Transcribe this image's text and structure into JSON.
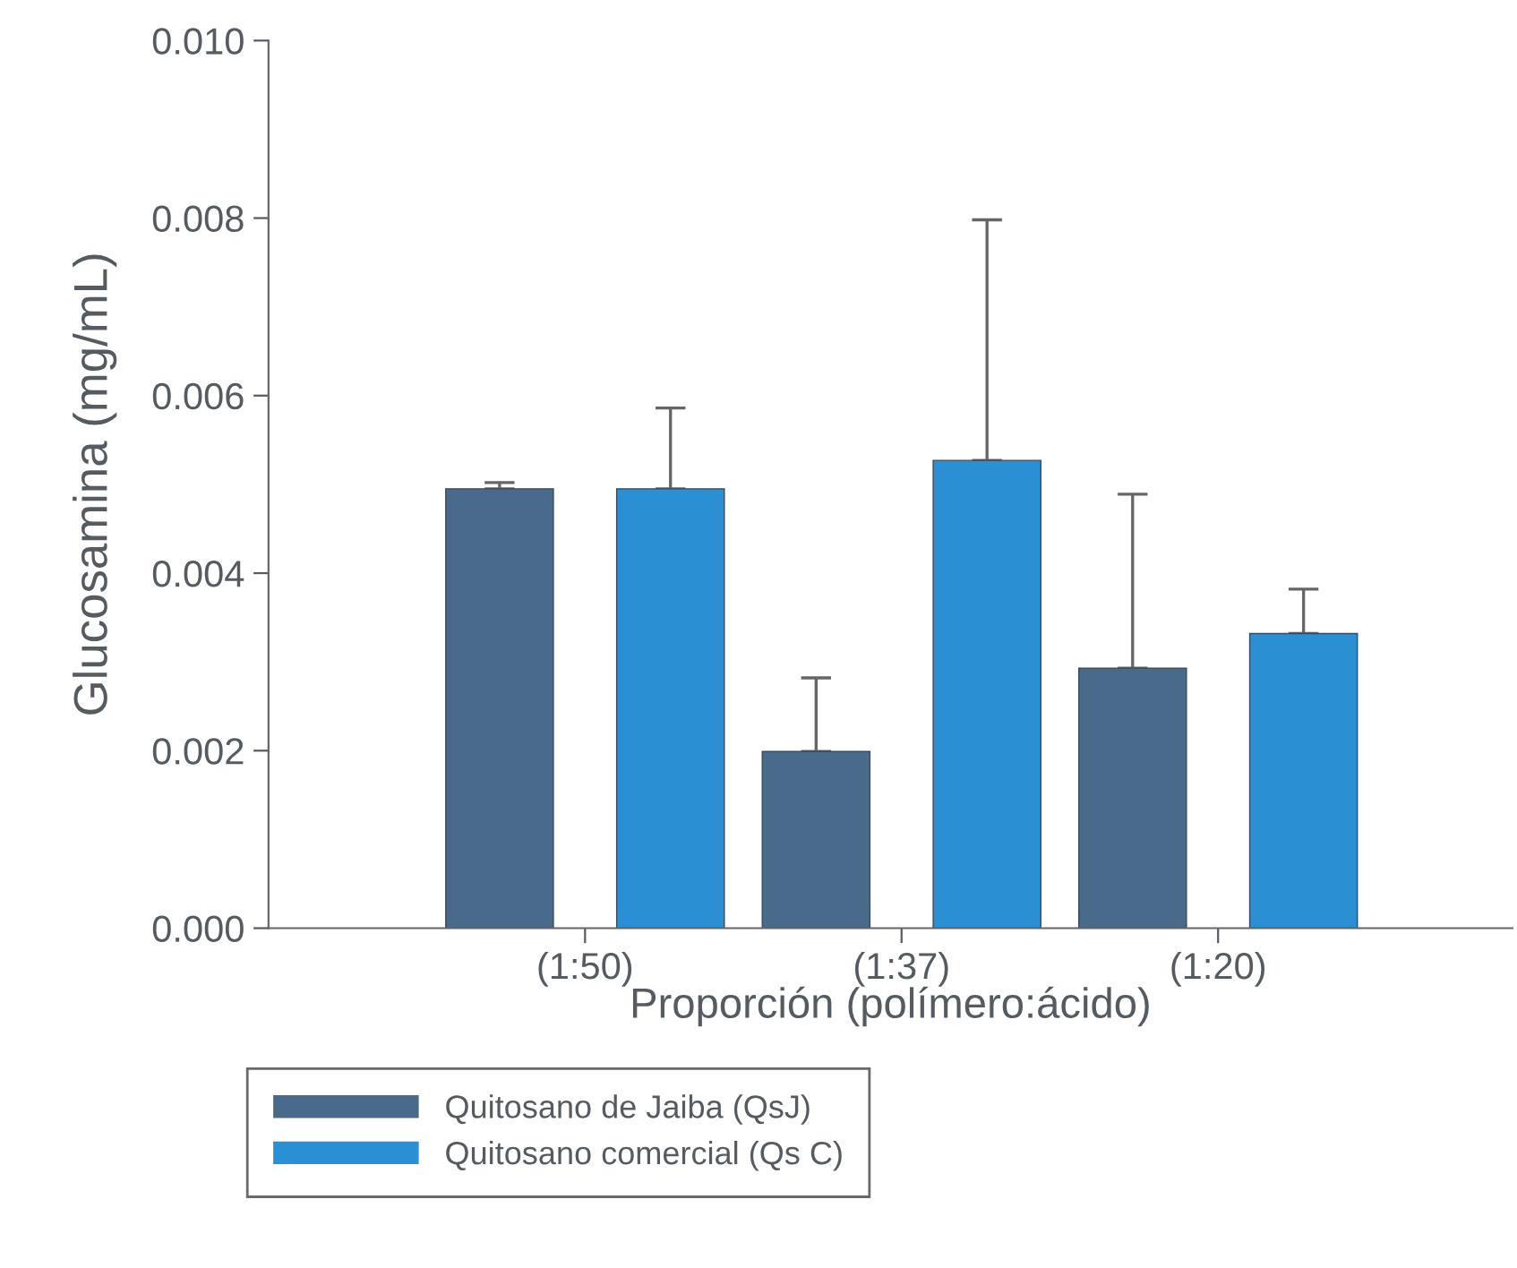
{
  "chart_data": {
    "type": "bar",
    "xlabel": "Proporción (polímero:ácido)",
    "ylabel": "Glucosamina (mg/mL)",
    "categories": [
      "(1:50)",
      "(1:37)",
      "(1:20)"
    ],
    "series": [
      {
        "name": "Quitosano de Jaiba (QsJ)",
        "color": "#4a6a8c",
        "values": [
          0.00495,
          0.00199,
          0.00293
        ],
        "errors": [
          [
            0.00495,
            0.00502
          ],
          [
            0.00199,
            0.00282
          ],
          [
            0.00293,
            0.00489
          ]
        ]
      },
      {
        "name": "Quitosano comercial (Qs C)",
        "color": "#2b8fd3",
        "values": [
          0.00495,
          0.00527,
          0.00332
        ],
        "errors": [
          [
            0.00495,
            0.00586
          ],
          [
            0.00527,
            0.00798
          ],
          [
            0.00332,
            0.00382
          ]
        ]
      }
    ],
    "ylim": [
      0,
      0.01
    ],
    "yticks": [
      {
        "value": 0,
        "label": "0.000"
      },
      {
        "value": 0.002,
        "label": "0.002"
      },
      {
        "value": 0.004,
        "label": "0.004"
      },
      {
        "value": 0.006,
        "label": "0.006"
      },
      {
        "value": 0.008,
        "label": "0.008"
      },
      {
        "value": 0.01,
        "label": "0.010"
      }
    ],
    "grid": false,
    "legend": "bottom left"
  }
}
